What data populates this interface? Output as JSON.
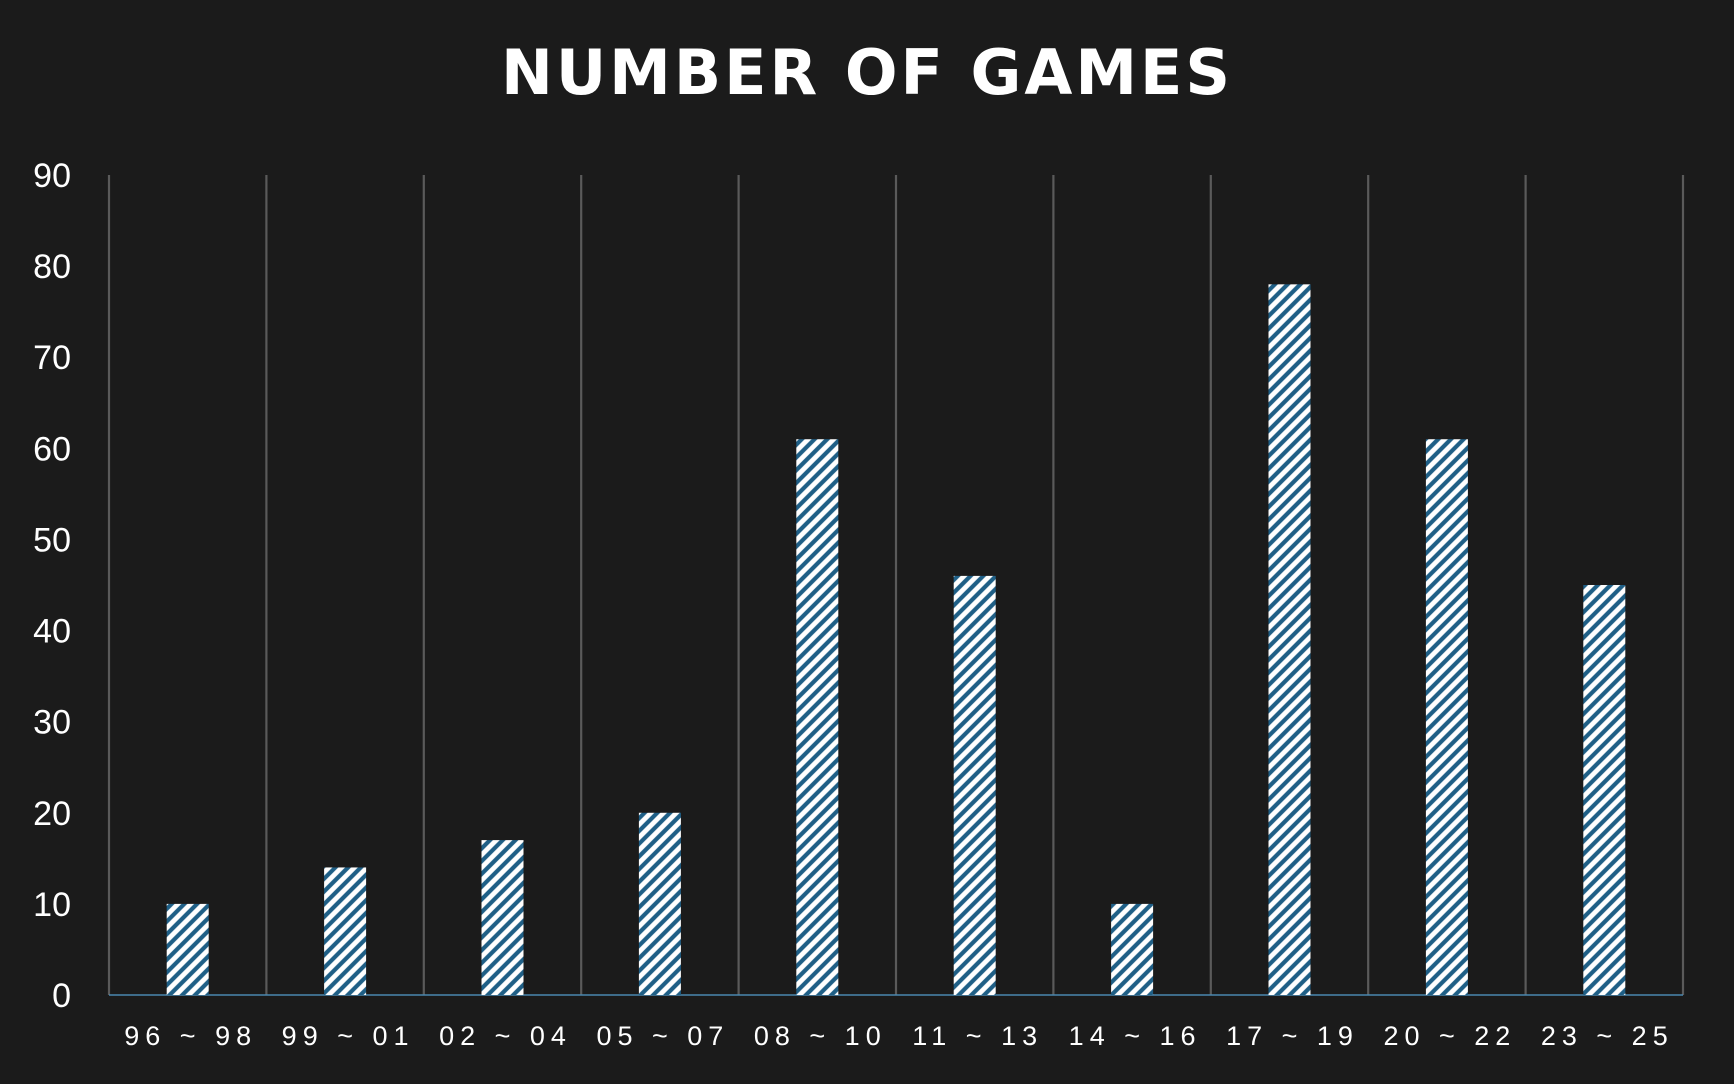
{
  "chart_data": {
    "type": "bar",
    "title": "NUMBER OF GAMES",
    "xlabel": "",
    "ylabel": "",
    "categories": [
      "96 ~ 98",
      "99 ~ 01",
      "02 ~ 04",
      "05 ~ 07",
      "08 ~ 10",
      "11 ~ 13",
      "14 ~ 16",
      "17 ~ 19",
      "20 ~ 22",
      "23 ~ 25"
    ],
    "values": [
      10,
      14,
      17,
      20,
      61,
      46,
      10,
      78,
      61,
      45
    ],
    "ylim": [
      0,
      90
    ],
    "yticks": [
      0,
      10,
      20,
      30,
      40,
      50,
      60,
      70,
      80,
      90
    ],
    "grid": "vertical separators between categories",
    "legend": "none",
    "colors": {
      "background": "#1b1b1b",
      "bar_fill": "#ffffff",
      "bar_hatch": "#1f5f86",
      "grid": "#5a5a5a",
      "baseline": "#4a88b0",
      "text": "#ffffff"
    }
  }
}
